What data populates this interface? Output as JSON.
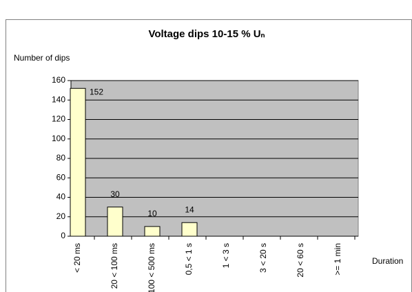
{
  "chart_data": {
    "type": "bar",
    "title": "Voltage dips 10-15 % Uₙ",
    "y_label": "Number of dips",
    "x_label": "Duration",
    "categories": [
      "< 20 ms",
      "20 < 100 ms",
      "100 < 500 ms",
      "0,5 < 1 s",
      "1 < 3 s",
      "3 < 20 s",
      "20 < 60 s",
      ">= 1 min"
    ],
    "values": [
      152,
      30,
      10,
      14,
      0,
      0,
      0,
      0
    ],
    "color": "#ffffcc",
    "plot_background": "#c0c0c0",
    "ylim": [
      0,
      160
    ],
    "yticks": [
      0,
      20,
      40,
      60,
      80,
      100,
      120,
      140,
      160
    ],
    "grid": true
  }
}
